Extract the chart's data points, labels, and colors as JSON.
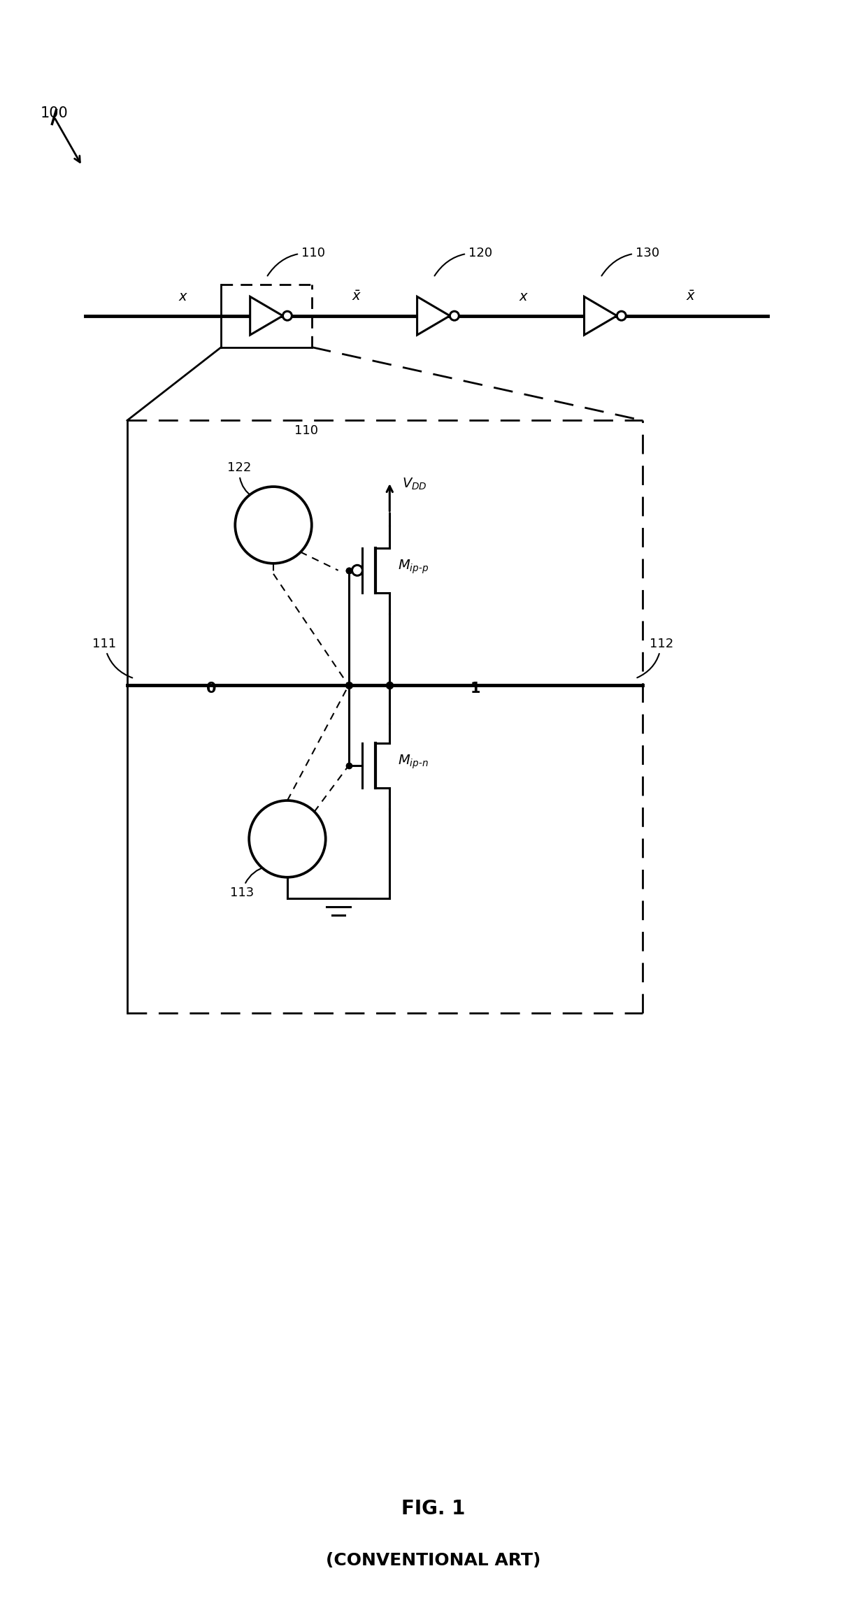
{
  "title": "FIG. 1\n(CONVENTIONAL ART)",
  "bg_color": "#ffffff",
  "line_color": "#000000",
  "fig_width": 12.4,
  "fig_height": 23.0,
  "dpi": 100
}
